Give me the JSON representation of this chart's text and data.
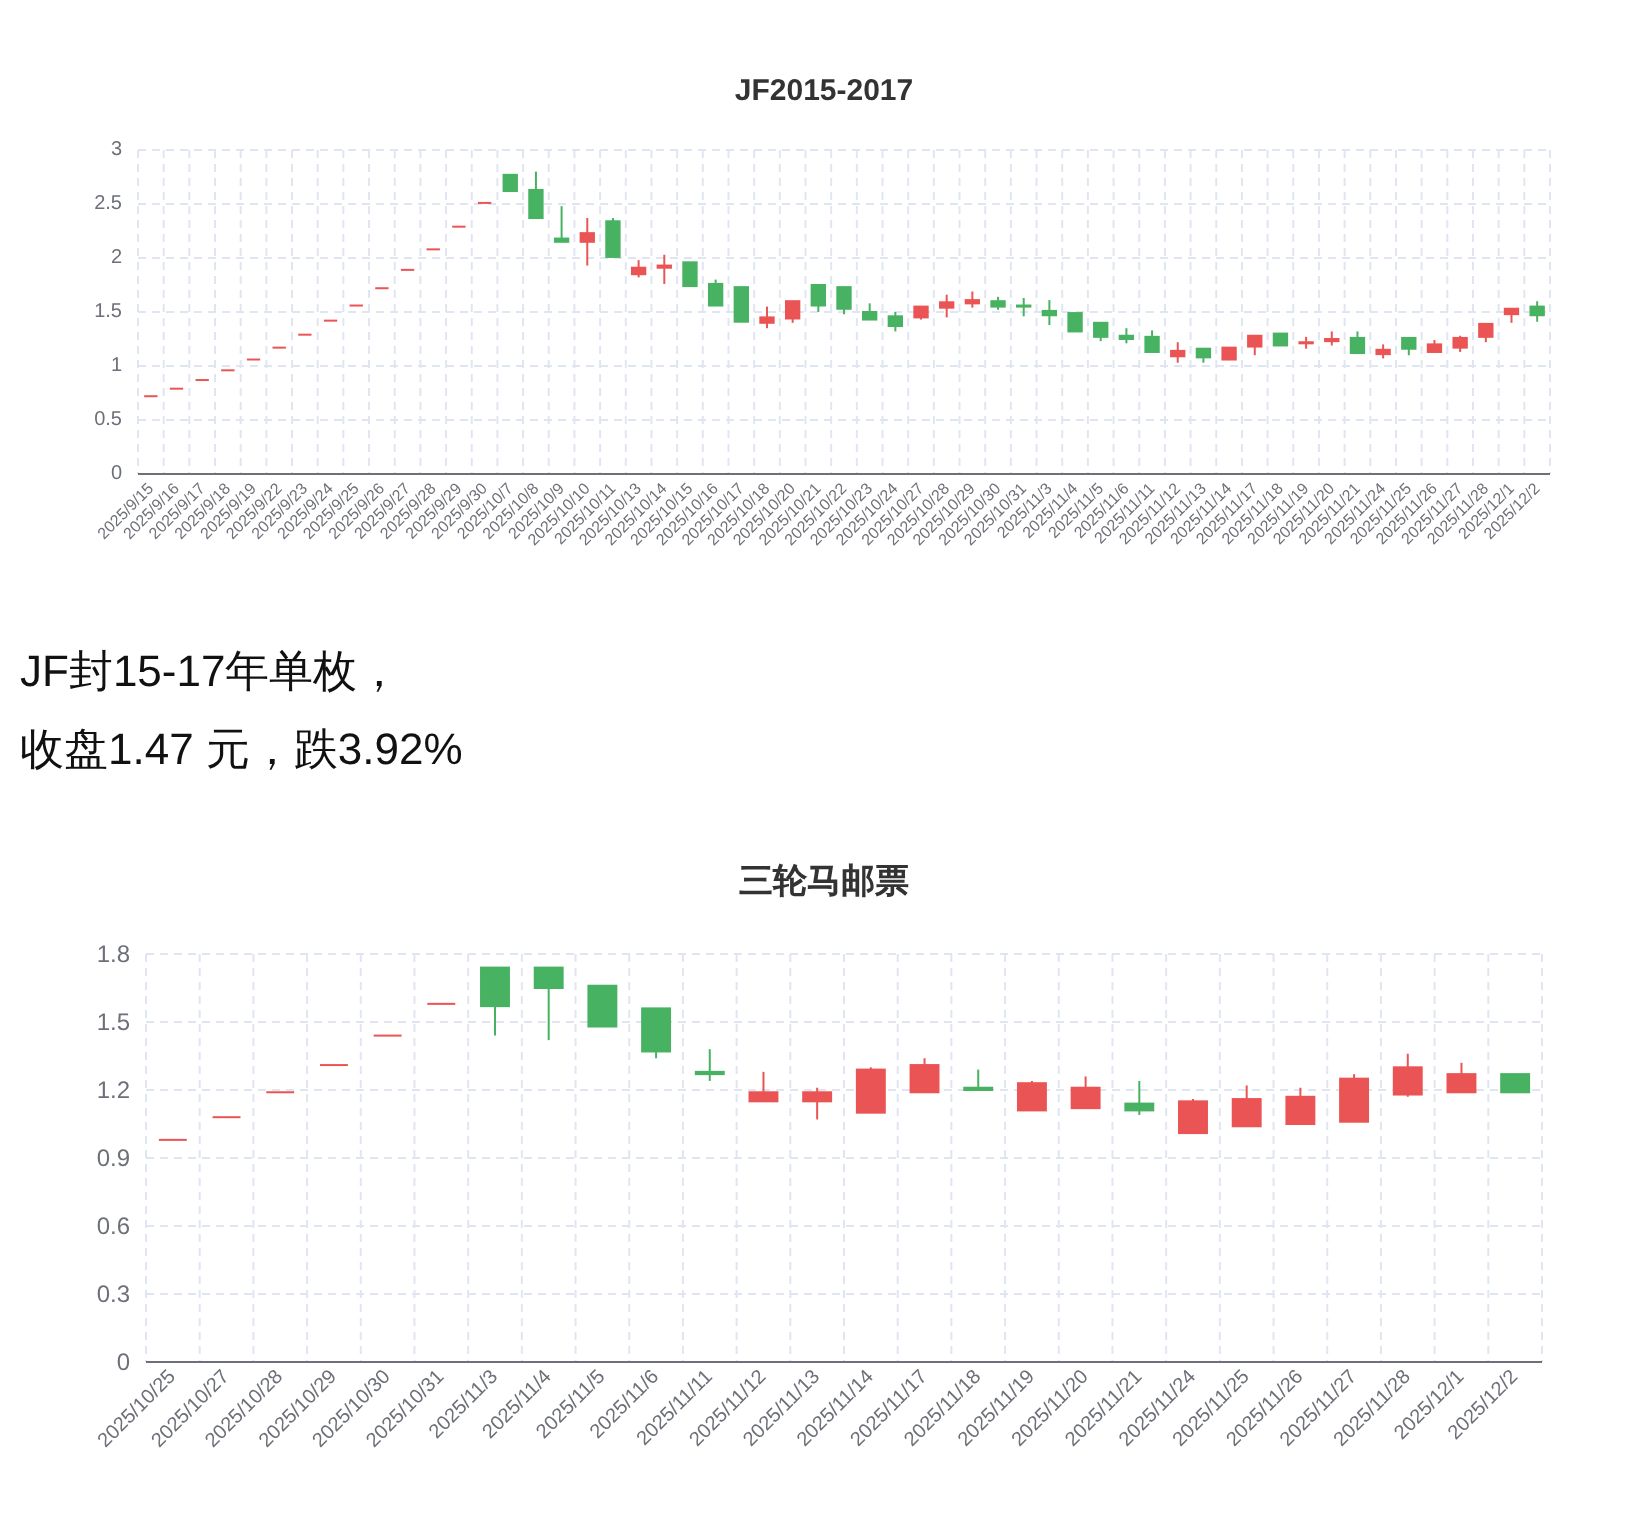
{
  "chart_data": [
    {
      "type": "candlestick",
      "title": "JF2015-2017",
      "grid": true,
      "ylim": [
        0,
        3
      ],
      "yticks": [
        0,
        0.5,
        1,
        1.5,
        2,
        2.5,
        3
      ],
      "categories": [
        "2025/9/15",
        "2025/9/16",
        "2025/9/17",
        "2025/9/18",
        "2025/9/19",
        "2025/9/22",
        "2025/9/23",
        "2025/9/24",
        "2025/9/25",
        "2025/9/26",
        "2025/9/27",
        "2025/9/28",
        "2025/9/29",
        "2025/9/30",
        "2025/10/7",
        "2025/10/8",
        "2025/10/9",
        "2025/10/10",
        "2025/10/11",
        "2025/10/13",
        "2025/10/14",
        "2025/10/15",
        "2025/10/16",
        "2025/10/17",
        "2025/10/18",
        "2025/10/20",
        "2025/10/21",
        "2025/10/22",
        "2025/10/23",
        "2025/10/24",
        "2025/10/27",
        "2025/10/28",
        "2025/10/29",
        "2025/10/30",
        "2025/10/31",
        "2025/11/3",
        "2025/11/4",
        "2025/11/5",
        "2025/11/6",
        "2025/11/11",
        "2025/11/12",
        "2025/11/13",
        "2025/11/14",
        "2025/11/17",
        "2025/11/18",
        "2025/11/19",
        "2025/11/20",
        "2025/11/21",
        "2025/11/24",
        "2025/11/25",
        "2025/11/26",
        "2025/11/27",
        "2025/11/28",
        "2025/12/1",
        "2025/12/2"
      ],
      "ohlc": [
        [
          0.72,
          0.72,
          0.72,
          0.72
        ],
        [
          0.79,
          0.79,
          0.79,
          0.79
        ],
        [
          0.87,
          0.87,
          0.87,
          0.87
        ],
        [
          0.96,
          0.96,
          0.96,
          0.96
        ],
        [
          1.06,
          1.06,
          1.06,
          1.06
        ],
        [
          1.17,
          1.17,
          1.17,
          1.17
        ],
        [
          1.29,
          1.29,
          1.29,
          1.29
        ],
        [
          1.42,
          1.42,
          1.42,
          1.42
        ],
        [
          1.56,
          1.56,
          1.56,
          1.56
        ],
        [
          1.72,
          1.72,
          1.72,
          1.72
        ],
        [
          1.89,
          1.89,
          1.89,
          1.89
        ],
        [
          2.08,
          2.08,
          2.08,
          2.08
        ],
        [
          2.29,
          2.29,
          2.29,
          2.29
        ],
        [
          2.51,
          2.51,
          2.51,
          2.51
        ],
        [
          2.77,
          2.77,
          2.62,
          2.62
        ],
        [
          2.63,
          2.8,
          2.37,
          2.37
        ],
        [
          2.18,
          2.48,
          2.15,
          2.15
        ],
        [
          2.15,
          2.37,
          1.93,
          2.23
        ],
        [
          2.34,
          2.37,
          2.01,
          2.01
        ],
        [
          1.85,
          1.98,
          1.82,
          1.91
        ],
        [
          1.91,
          2.03,
          1.76,
          1.93
        ],
        [
          1.96,
          1.96,
          1.74,
          1.74
        ],
        [
          1.76,
          1.8,
          1.56,
          1.56
        ],
        [
          1.73,
          1.73,
          1.41,
          1.41
        ],
        [
          1.4,
          1.55,
          1.35,
          1.45
        ],
        [
          1.44,
          1.6,
          1.4,
          1.6
        ],
        [
          1.75,
          1.75,
          1.5,
          1.56
        ],
        [
          1.73,
          1.73,
          1.48,
          1.53
        ],
        [
          1.5,
          1.58,
          1.43,
          1.43
        ],
        [
          1.46,
          1.5,
          1.32,
          1.37
        ],
        [
          1.45,
          1.55,
          1.43,
          1.55
        ],
        [
          1.54,
          1.66,
          1.45,
          1.59
        ],
        [
          1.58,
          1.69,
          1.54,
          1.61
        ],
        [
          1.6,
          1.64,
          1.52,
          1.55
        ],
        [
          1.56,
          1.63,
          1.46,
          1.55
        ],
        [
          1.51,
          1.61,
          1.38,
          1.47
        ],
        [
          1.49,
          1.49,
          1.32,
          1.32
        ],
        [
          1.4,
          1.4,
          1.23,
          1.27
        ],
        [
          1.28,
          1.35,
          1.21,
          1.25
        ],
        [
          1.27,
          1.33,
          1.13,
          1.13
        ],
        [
          1.09,
          1.22,
          1.03,
          1.14
        ],
        [
          1.16,
          1.16,
          1.03,
          1.08
        ],
        [
          1.06,
          1.17,
          1.06,
          1.17
        ],
        [
          1.18,
          1.28,
          1.1,
          1.28
        ],
        [
          1.3,
          1.3,
          1.19,
          1.19
        ],
        [
          1.21,
          1.27,
          1.16,
          1.22
        ],
        [
          1.23,
          1.32,
          1.19,
          1.25
        ],
        [
          1.26,
          1.32,
          1.12,
          1.12
        ],
        [
          1.11,
          1.2,
          1.07,
          1.15
        ],
        [
          1.26,
          1.26,
          1.1,
          1.16
        ],
        [
          1.13,
          1.24,
          1.13,
          1.2
        ],
        [
          1.17,
          1.28,
          1.13,
          1.26
        ],
        [
          1.27,
          1.39,
          1.22,
          1.39
        ],
        [
          1.48,
          1.53,
          1.4,
          1.53
        ],
        [
          1.55,
          1.6,
          1.41,
          1.47
        ]
      ],
      "colors": [
        "#eb5454",
        "#eb5454",
        "#eb5454",
        "#eb5454",
        "#eb5454",
        "#eb5454",
        "#eb5454",
        "#eb5454",
        "#eb5454",
        "#eb5454",
        "#eb5454",
        "#eb5454",
        "#eb5454",
        "#eb5454",
        "#47b262",
        "#47b262",
        "#47b262",
        "#eb5454",
        "#47b262",
        "#eb5454",
        "#eb5454",
        "#47b262",
        "#47b262",
        "#47b262",
        "#eb5454",
        "#eb5454",
        "#47b262",
        "#47b262",
        "#47b262",
        "#47b262",
        "#eb5454",
        "#eb5454",
        "#eb5454",
        "#47b262",
        "#47b262",
        "#47b262",
        "#47b262",
        "#47b262",
        "#47b262",
        "#47b262",
        "#eb5454",
        "#47b262",
        "#eb5454",
        "#eb5454",
        "#47b262",
        "#eb5454",
        "#eb5454",
        "#47b262",
        "#eb5454",
        "#47b262",
        "#eb5454",
        "#eb5454",
        "#eb5454",
        "#eb5454",
        "#47b262"
      ]
    },
    {
      "type": "other",
      "annotations": [
        "JF封15-17年单枚，",
        "收盘1.47 元，跌3.92%"
      ]
    },
    {
      "type": "candlestick",
      "title": "三轮马邮票",
      "grid": true,
      "ylim": [
        0,
        1.8
      ],
      "yticks": [
        0,
        0.3,
        0.6,
        0.9,
        1.2,
        1.5,
        1.8
      ],
      "categories": [
        "2025/10/25",
        "2025/10/27",
        "2025/10/28",
        "2025/10/29",
        "2025/10/30",
        "2025/10/31",
        "2025/11/3",
        "2025/11/4",
        "2025/11/5",
        "2025/11/6",
        "2025/11/11",
        "2025/11/12",
        "2025/11/13",
        "2025/11/14",
        "2025/11/17",
        "2025/11/18",
        "2025/11/19",
        "2025/11/20",
        "2025/11/21",
        "2025/11/24",
        "2025/11/25",
        "2025/11/26",
        "2025/11/27",
        "2025/11/28",
        "2025/12/1",
        "2025/12/2"
      ],
      "ohlc": [
        [
          0.98,
          0.98,
          0.98,
          0.98
        ],
        [
          1.08,
          1.08,
          1.08,
          1.08
        ],
        [
          1.19,
          1.19,
          1.19,
          1.19
        ],
        [
          1.31,
          1.31,
          1.31,
          1.31
        ],
        [
          1.44,
          1.44,
          1.44,
          1.44
        ],
        [
          1.58,
          1.58,
          1.58,
          1.58
        ],
        [
          1.74,
          1.74,
          1.44,
          1.57
        ],
        [
          1.74,
          1.74,
          1.42,
          1.65
        ],
        [
          1.66,
          1.66,
          1.48,
          1.48
        ],
        [
          1.56,
          1.56,
          1.34,
          1.37
        ],
        [
          1.28,
          1.38,
          1.24,
          1.27
        ],
        [
          1.15,
          1.28,
          1.15,
          1.19
        ],
        [
          1.15,
          1.21,
          1.07,
          1.19
        ],
        [
          1.1,
          1.3,
          1.1,
          1.29
        ],
        [
          1.19,
          1.34,
          1.19,
          1.31
        ],
        [
          1.21,
          1.29,
          1.2,
          1.2
        ],
        [
          1.11,
          1.24,
          1.11,
          1.23
        ],
        [
          1.12,
          1.26,
          1.12,
          1.21
        ],
        [
          1.14,
          1.24,
          1.09,
          1.11
        ],
        [
          1.01,
          1.16,
          1.01,
          1.15
        ],
        [
          1.04,
          1.22,
          1.04,
          1.16
        ],
        [
          1.05,
          1.21,
          1.05,
          1.17
        ],
        [
          1.06,
          1.27,
          1.06,
          1.25
        ],
        [
          1.18,
          1.36,
          1.17,
          1.3
        ],
        [
          1.19,
          1.32,
          1.19,
          1.27
        ],
        [
          1.27,
          1.27,
          1.19,
          1.19
        ]
      ],
      "colors": [
        "#eb5454",
        "#eb5454",
        "#eb5454",
        "#eb5454",
        "#eb5454",
        "#eb5454",
        "#47b262",
        "#47b262",
        "#47b262",
        "#47b262",
        "#47b262",
        "#eb5454",
        "#eb5454",
        "#eb5454",
        "#eb5454",
        "#47b262",
        "#eb5454",
        "#eb5454",
        "#47b262",
        "#eb5454",
        "#eb5454",
        "#eb5454",
        "#eb5454",
        "#eb5454",
        "#eb5454",
        "#47b262"
      ]
    }
  ]
}
